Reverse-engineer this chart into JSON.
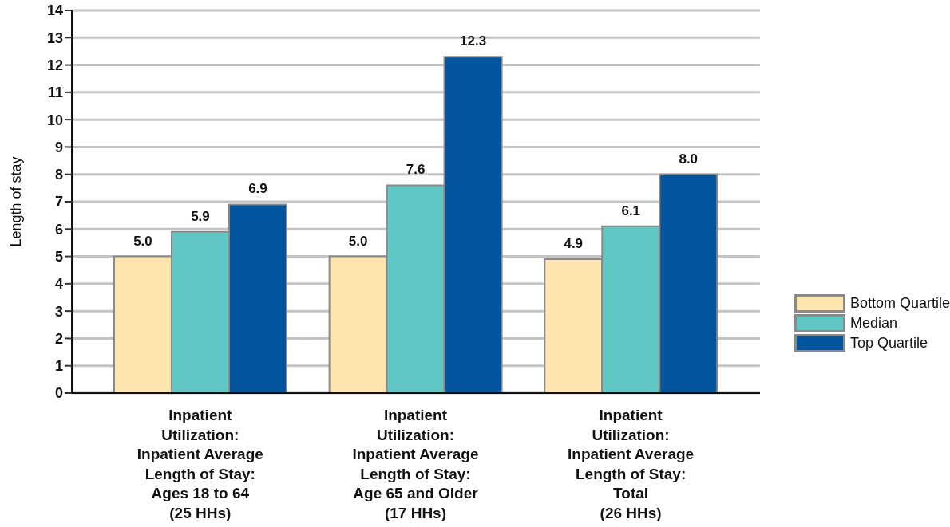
{
  "chart_data": {
    "type": "bar",
    "ylabel": "Length of stay",
    "categories": [
      "Inpatient\nUtilization:\nInpatient Average\nLength of Stay:\nAges 18 to 64\n(25 HHs)",
      "Inpatient\nUtilization:\nInpatient Average\nLength of Stay:\nAge 65 and Older\n(17 HHs)",
      "Inpatient\nUtilization:\nInpatient Average\nLength of Stay:\nTotal\n(26 HHs)"
    ],
    "series": [
      {
        "name": "Bottom Quartile",
        "color": "#fde5b0",
        "values": [
          5.0,
          5.0,
          4.9
        ],
        "value_labels": [
          "5.0",
          "5.0",
          "4.9"
        ]
      },
      {
        "name": "Median",
        "color": "#5fc8c4",
        "values": [
          5.9,
          7.6,
          6.1
        ],
        "value_labels": [
          "5.9",
          "7.6",
          "6.1"
        ]
      },
      {
        "name": "Top Quartile",
        "color": "#03559f",
        "values": [
          6.9,
          12.3,
          8.0
        ],
        "value_labels": [
          "6.9",
          "12.3",
          "8.0"
        ]
      }
    ],
    "ylim": [
      0,
      14
    ],
    "yticks": [
      0,
      1,
      2,
      3,
      4,
      5,
      6,
      7,
      8,
      9,
      10,
      11,
      12,
      13,
      14
    ],
    "grid": "y",
    "legend": "right"
  }
}
